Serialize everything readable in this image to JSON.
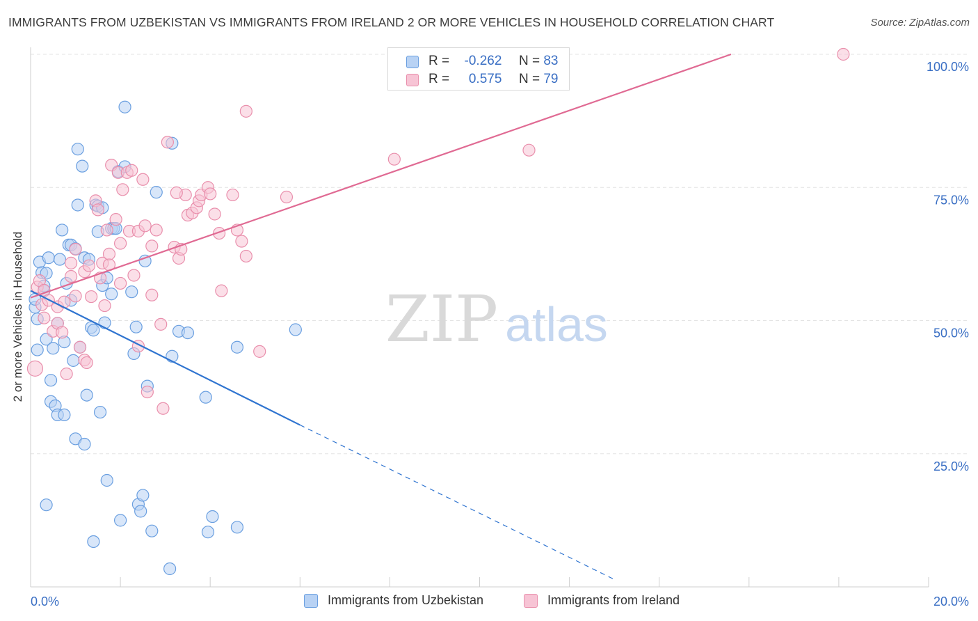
{
  "header": {
    "title": "IMMIGRANTS FROM UZBEKISTAN VS IMMIGRANTS FROM IRELAND 2 OR MORE VEHICLES IN HOUSEHOLD CORRELATION CHART",
    "source": "Source: ZipAtlas.com"
  },
  "watermark": {
    "zip": "ZIP",
    "atlas": "atlas"
  },
  "legend": {
    "r_label": "R =",
    "n_label": "N =",
    "series": [
      {
        "r": "-0.262",
        "n": "83"
      },
      {
        "r": "0.575",
        "n": "79"
      }
    ]
  },
  "colors": {
    "blue_fill": "#b8d2f4",
    "blue_stroke": "#6a9fe0",
    "blue_line": "#2f74d0",
    "pink_fill": "#f7c4d5",
    "pink_stroke": "#e98fac",
    "pink_line": "#e06a93",
    "tick_label": "#3a6fc4"
  },
  "chart_data": {
    "type": "scatter",
    "title": "IMMIGRANTS FROM UZBEKISTAN VS IMMIGRANTS FROM IRELAND 2 OR MORE VEHICLES IN HOUSEHOLD CORRELATION CHART",
    "xlabel": "",
    "ylabel": "2 or more Vehicles in Household",
    "xlim": [
      0,
      20
    ],
    "ylim": [
      0,
      100
    ],
    "x_tick_labels": [
      "0.0%",
      "20.0%"
    ],
    "y_ticks": [
      25,
      50,
      75,
      100
    ],
    "y_tick_labels": [
      "25.0%",
      "50.0%",
      "75.0%",
      "100.0%"
    ],
    "grid": true,
    "legend_position": "top-center",
    "series": [
      {
        "name": "Immigrants from Uzbekistan",
        "r": -0.262,
        "n": 83,
        "trend": {
          "x": [
            0,
            6
          ],
          "y": [
            55.6,
            30.4
          ],
          "dashed_to": [
            13,
            1.4
          ]
        },
        "points": [
          [
            0.1,
            52.5
          ],
          [
            0.1,
            54
          ],
          [
            0.15,
            50.3
          ],
          [
            0.15,
            44.5
          ],
          [
            0.2,
            61
          ],
          [
            0.25,
            59
          ],
          [
            0.3,
            55.6
          ],
          [
            0.3,
            56.5
          ],
          [
            0.35,
            58.9
          ],
          [
            0.35,
            46.5
          ],
          [
            0.4,
            61.8
          ],
          [
            0.45,
            34.8
          ],
          [
            0.45,
            38.8
          ],
          [
            0.5,
            44.8
          ],
          [
            0.55,
            34
          ],
          [
            0.6,
            32.3
          ],
          [
            0.6,
            49.5
          ],
          [
            0.65,
            61.5
          ],
          [
            0.7,
            67
          ],
          [
            0.75,
            32.3
          ],
          [
            0.75,
            46
          ],
          [
            0.8,
            57
          ],
          [
            0.85,
            64.2
          ],
          [
            0.9,
            64.2
          ],
          [
            0.9,
            53.8
          ],
          [
            0.95,
            42.5
          ],
          [
            1.0,
            27.8
          ],
          [
            1.0,
            63.5
          ],
          [
            1.05,
            71.7
          ],
          [
            1.05,
            82.2
          ],
          [
            1.1,
            45
          ],
          [
            1.15,
            79
          ],
          [
            1.2,
            26.8
          ],
          [
            1.2,
            61.8
          ],
          [
            1.25,
            36
          ],
          [
            1.3,
            61.5
          ],
          [
            1.35,
            48.7
          ],
          [
            1.4,
            8.5
          ],
          [
            1.4,
            48.2
          ],
          [
            1.45,
            71.7
          ],
          [
            1.5,
            71.5
          ],
          [
            1.5,
            66.7
          ],
          [
            1.55,
            32.8
          ],
          [
            1.6,
            71.2
          ],
          [
            1.6,
            56.6
          ],
          [
            1.65,
            49.6
          ],
          [
            1.7,
            58
          ],
          [
            1.7,
            20
          ],
          [
            1.8,
            67.3
          ],
          [
            1.8,
            55
          ],
          [
            1.85,
            67.3
          ],
          [
            1.9,
            67.3
          ],
          [
            1.95,
            78
          ],
          [
            2.0,
            12.5
          ],
          [
            2.1,
            90.1
          ],
          [
            2.1,
            78.9
          ],
          [
            2.25,
            55.4
          ],
          [
            2.3,
            43.8
          ],
          [
            2.35,
            48.8
          ],
          [
            2.4,
            15.5
          ],
          [
            2.45,
            14.2
          ],
          [
            2.5,
            17.2
          ],
          [
            2.55,
            61.2
          ],
          [
            2.6,
            37.7
          ],
          [
            2.7,
            10.5
          ],
          [
            2.8,
            74.1
          ],
          [
            3.1,
            3.4
          ],
          [
            3.15,
            43.3
          ],
          [
            3.15,
            83.3
          ],
          [
            3.3,
            48
          ],
          [
            3.5,
            47.7
          ],
          [
            3.9,
            35.6
          ],
          [
            3.95,
            10.3
          ],
          [
            4.05,
            13.2
          ],
          [
            4.6,
            11.2
          ],
          [
            4.6,
            45
          ],
          [
            5.9,
            48.3
          ],
          [
            0.35,
            15.4
          ]
        ]
      },
      {
        "name": "Immigrants from Ireland",
        "r": 0.575,
        "n": 79,
        "trend": {
          "x": [
            0,
            15.6
          ],
          "y": [
            54.3,
            100
          ]
        },
        "points": [
          [
            0.1,
            41
          ],
          [
            0.15,
            56.3
          ],
          [
            0.2,
            57.5
          ],
          [
            0.25,
            53
          ],
          [
            0.3,
            55.7
          ],
          [
            0.3,
            50.5
          ],
          [
            0.4,
            53.8
          ],
          [
            0.5,
            48
          ],
          [
            0.6,
            52.6
          ],
          [
            0.6,
            49.5
          ],
          [
            0.7,
            47.8
          ],
          [
            0.75,
            53.5
          ],
          [
            0.8,
            40
          ],
          [
            0.9,
            58.3
          ],
          [
            0.9,
            60.8
          ],
          [
            1.0,
            63.4
          ],
          [
            1.0,
            54.6
          ],
          [
            1.1,
            45
          ],
          [
            1.2,
            59.2
          ],
          [
            1.2,
            42.6
          ],
          [
            1.25,
            42.1
          ],
          [
            1.3,
            60.3
          ],
          [
            1.35,
            54.5
          ],
          [
            1.45,
            72.5
          ],
          [
            1.5,
            70.8
          ],
          [
            1.55,
            58
          ],
          [
            1.6,
            60.8
          ],
          [
            1.65,
            52.8
          ],
          [
            1.7,
            67
          ],
          [
            1.75,
            60.5
          ],
          [
            1.75,
            62.5
          ],
          [
            1.8,
            79.2
          ],
          [
            1.9,
            69
          ],
          [
            1.95,
            77.8
          ],
          [
            2.0,
            57
          ],
          [
            2.0,
            64.5
          ],
          [
            2.05,
            74.6
          ],
          [
            2.15,
            77.8
          ],
          [
            2.2,
            66.8
          ],
          [
            2.25,
            78.2
          ],
          [
            2.3,
            58.5
          ],
          [
            2.4,
            45.2
          ],
          [
            2.4,
            66.8
          ],
          [
            2.5,
            76.5
          ],
          [
            2.55,
            67.8
          ],
          [
            2.6,
            36.6
          ],
          [
            2.7,
            54.8
          ],
          [
            2.7,
            64
          ],
          [
            2.8,
            67
          ],
          [
            2.9,
            49.3
          ],
          [
            2.95,
            33.5
          ],
          [
            3.05,
            83.5
          ],
          [
            3.2,
            63.8
          ],
          [
            3.3,
            61.7
          ],
          [
            3.35,
            63.4
          ],
          [
            3.45,
            73.6
          ],
          [
            3.5,
            69.8
          ],
          [
            3.6,
            70.2
          ],
          [
            3.7,
            71.2
          ],
          [
            3.75,
            72.5
          ],
          [
            3.8,
            73.6
          ],
          [
            3.95,
            75
          ],
          [
            4.0,
            73.8
          ],
          [
            4.1,
            70
          ],
          [
            4.25,
            55.6
          ],
          [
            4.5,
            73.6
          ],
          [
            4.6,
            67
          ],
          [
            4.7,
            64.9
          ],
          [
            4.8,
            62.1
          ],
          [
            4.8,
            89.3
          ],
          [
            5.1,
            44.2
          ],
          [
            5.7,
            73.2
          ],
          [
            8.1,
            80.3
          ],
          [
            11.1,
            82
          ],
          [
            18.1,
            100
          ],
          [
            4.2,
            66.4
          ],
          [
            3.25,
            74
          ]
        ]
      }
    ]
  },
  "bottom_legend": {
    "items": [
      {
        "label": "Immigrants from Uzbekistan"
      },
      {
        "label": "Immigrants from Ireland"
      }
    ]
  }
}
